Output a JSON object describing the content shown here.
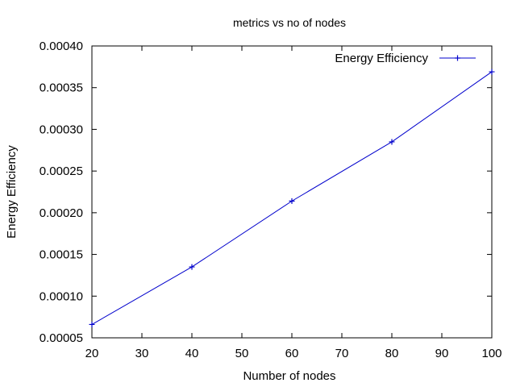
{
  "chart_data": {
    "type": "line",
    "title": "metrics vs no of nodes",
    "xlabel": "Number of nodes",
    "ylabel": "Energy Efficiency",
    "xlim": [
      20,
      100
    ],
    "ylim": [
      5e-05,
      0.0004
    ],
    "xticks": [
      "20",
      "30",
      "40",
      "50",
      "60",
      "70",
      "80",
      "90",
      "100"
    ],
    "yticks": [
      "0.00005",
      "0.00010",
      "0.00015",
      "0.00020",
      "0.00025",
      "0.00030",
      "0.00035",
      "0.00040"
    ],
    "grid": false,
    "legend_position": "top-right",
    "series": [
      {
        "name": "Energy Efficiency",
        "color": "#0000cc",
        "marker": "plus",
        "x": [
          20,
          40,
          60,
          80,
          100
        ],
        "y": [
          6.6e-05,
          0.000135,
          0.000214,
          0.000285,
          0.000369
        ]
      }
    ]
  }
}
